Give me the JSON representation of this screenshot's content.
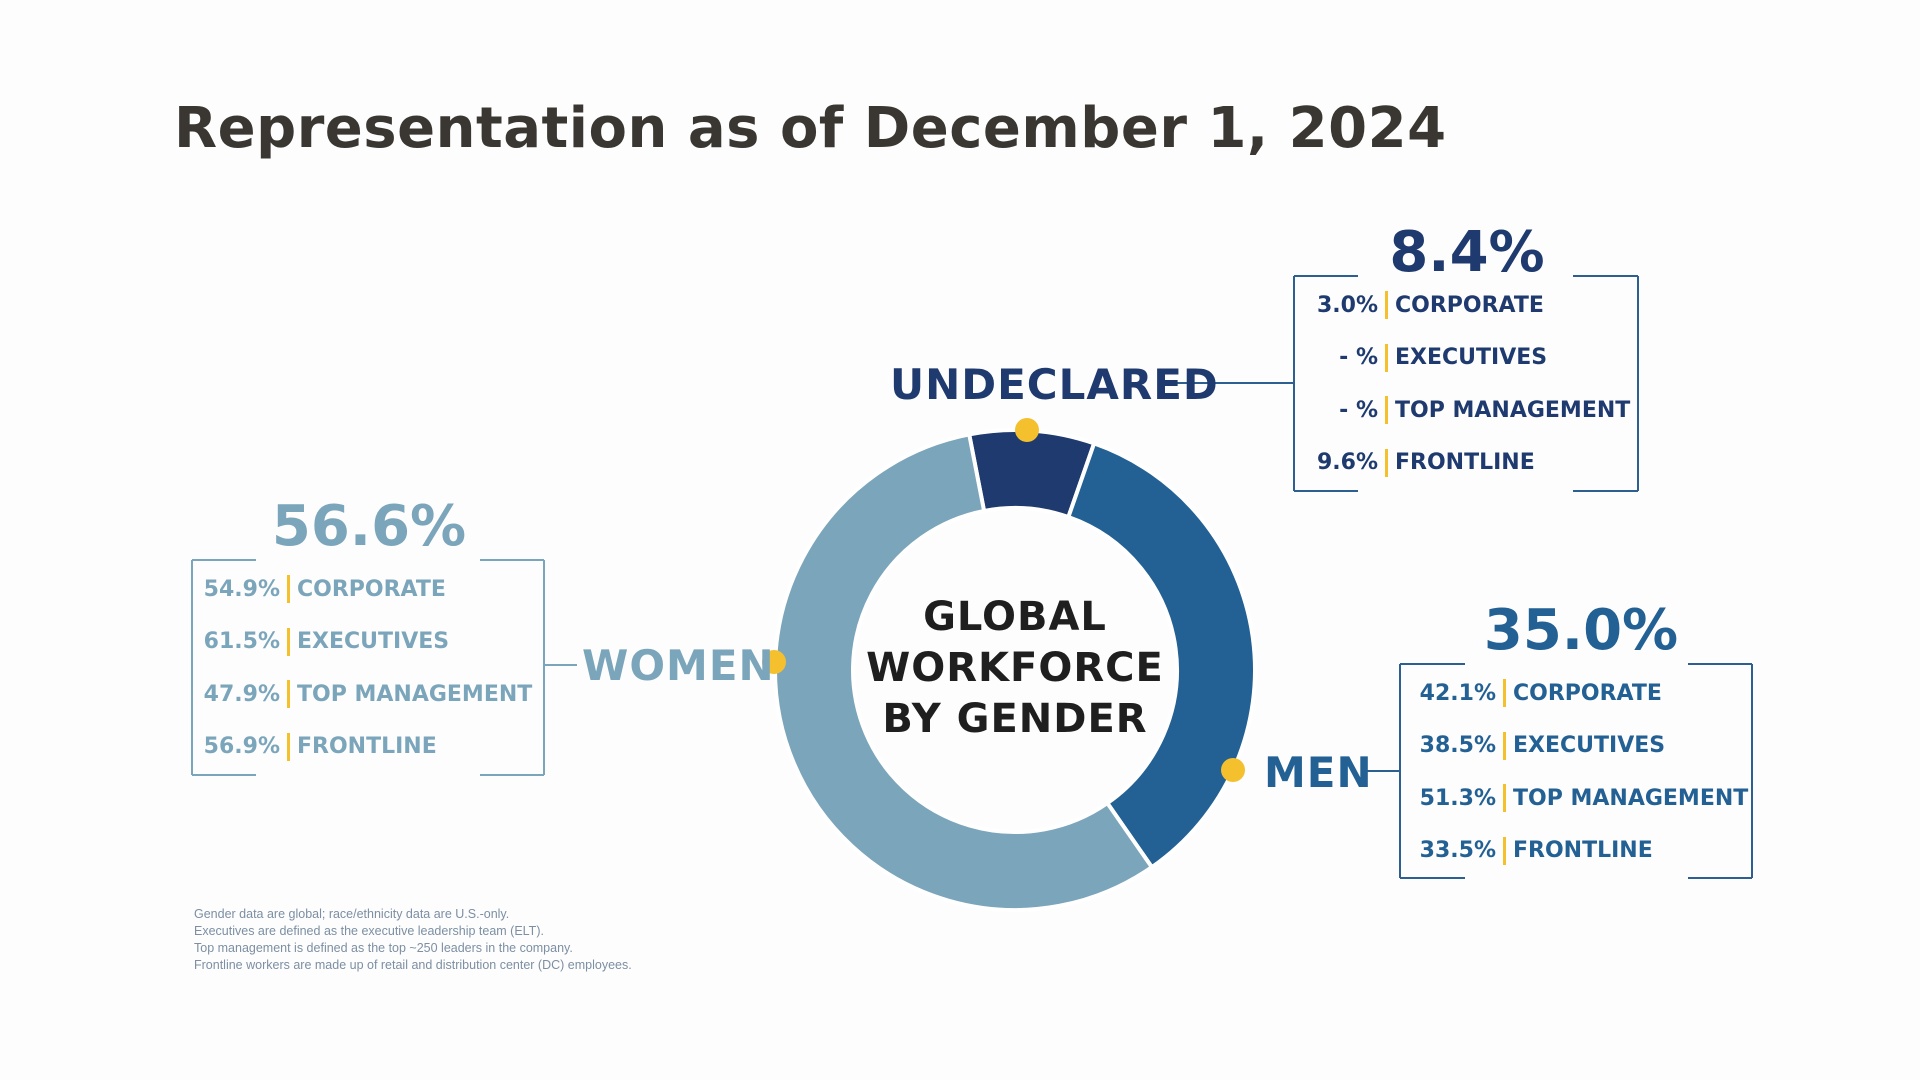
{
  "title": "Representation as of December 1, 2024",
  "colors": {
    "women": "#7ba5ba",
    "men": "#236093",
    "undeclared": "#1e3a6e",
    "accent": "#f5c02e",
    "bracket": "#2e5f91"
  },
  "chart_data": {
    "type": "pie",
    "center_label": [
      "GLOBAL",
      "WORKFORCE",
      "BY GENDER"
    ],
    "categories": [
      "WOMEN",
      "MEN",
      "UNDECLARED"
    ],
    "values": [
      56.6,
      35.0,
      8.4
    ],
    "value_labels": [
      "56.6%",
      "35.0%",
      "8.4%"
    ],
    "breakdowns": {
      "women": [
        {
          "value": "54.9%",
          "label": "CORPORATE"
        },
        {
          "value": "61.5%",
          "label": "EXECUTIVES"
        },
        {
          "value": "47.9%",
          "label": "TOP MANAGEMENT"
        },
        {
          "value": "56.9%",
          "label": "FRONTLINE"
        }
      ],
      "men": [
        {
          "value": "42.1%",
          "label": "CORPORATE"
        },
        {
          "value": "38.5%",
          "label": "EXECUTIVES"
        },
        {
          "value": "51.3%",
          "label": "TOP MANAGEMENT"
        },
        {
          "value": "33.5%",
          "label": "FRONTLINE"
        }
      ],
      "undeclared": [
        {
          "value": "3.0%",
          "label": "CORPORATE"
        },
        {
          "value": "- %",
          "label": "EXECUTIVES"
        },
        {
          "value": "- %",
          "label": "TOP MANAGEMENT"
        },
        {
          "value": "9.6%",
          "label": "FRONTLINE"
        }
      ]
    }
  },
  "footnotes": [
    "Gender data are global; race/ethnicity data are U.S.-only.",
    "Executives are defined as the executive leadership team (ELT).",
    "Top management is defined as the top ~250 leaders in the company.",
    "Frontline workers are made up of retail and distribution center (DC) employees."
  ]
}
